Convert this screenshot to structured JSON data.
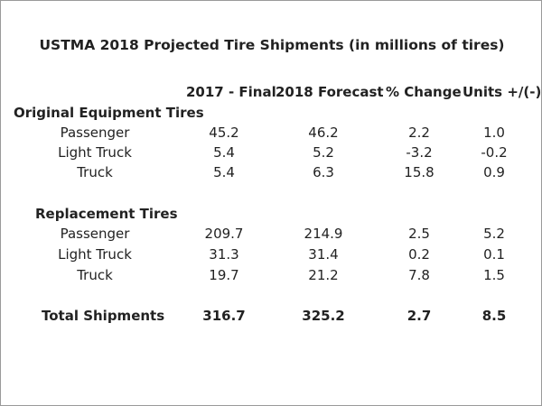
{
  "title": "USTMA 2018 Projected Tire Shipments (in millions of tires)",
  "columns": [
    "2017 - Final",
    "2018  Forecast",
    "% Change",
    "Units +/(-)"
  ],
  "sections": [
    {
      "name": "Original Equipment Tires",
      "rows": [
        {
          "label": "Passenger",
          "values": [
            "45.2",
            "46.2",
            "2.2",
            "1.0"
          ]
        },
        {
          "label": "Light Truck",
          "values": [
            "5.4",
            "5.2",
            "-3.2",
            "-0.2"
          ]
        },
        {
          "label": "Truck",
          "values": [
            "5.4",
            "6.3",
            "15.8",
            "0.9"
          ]
        }
      ]
    },
    {
      "name": "Replacement Tires",
      "rows": [
        {
          "label": "Passenger",
          "values": [
            "209.7",
            "214.9",
            "2.5",
            "5.2"
          ]
        },
        {
          "label": "Light Truck",
          "values": [
            "31.3",
            "31.4",
            "0.2",
            "0.1"
          ]
        },
        {
          "label": "Truck",
          "values": [
            "19.7",
            "21.2",
            "7.8",
            "1.5"
          ]
        }
      ]
    }
  ],
  "total": {
    "label": "Total Shipments",
    "values": [
      "316.7",
      "325.2",
      "2.7",
      "8.5"
    ]
  }
}
